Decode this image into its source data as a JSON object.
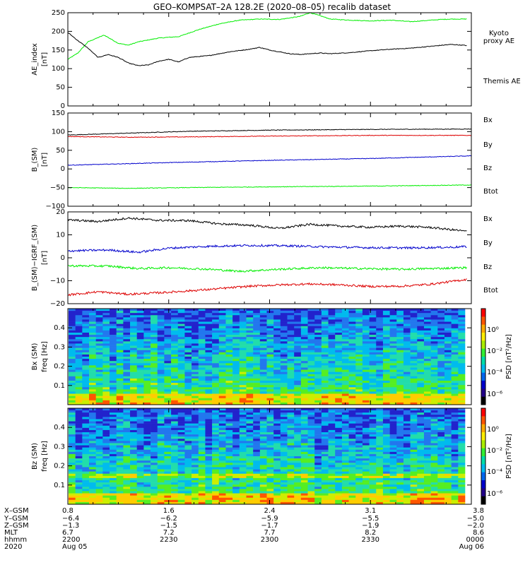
{
  "title": "GEO–KOMPSAT–2A 128.2E (2020–08–05) recalib dataset",
  "colors": {
    "black": "#000000",
    "green": "#00ee00",
    "red": "#dd0000",
    "blue": "#0000cc"
  },
  "chart_data": [
    {
      "id": "ae",
      "type": "line",
      "ylabel": "AE_index",
      "yunit": "[nT]",
      "ylim": [
        0,
        250
      ],
      "yticks": [
        "0",
        "50",
        "100",
        "150",
        "200",
        "250"
      ],
      "xlim": [
        22.0,
        24.0
      ],
      "legend": [
        {
          "text": "Kyoto",
          "color": "#00ee00"
        },
        {
          "text": "proxy AE",
          "color": "#00ee00"
        },
        {
          "text": "Themis AE",
          "color": "#000000"
        }
      ],
      "series": [
        {
          "name": "Kyoto proxy AE",
          "color": "#00ee00",
          "x": [
            22.0,
            22.05,
            22.1,
            22.18,
            22.25,
            22.3,
            22.35,
            22.45,
            22.55,
            22.65,
            22.75,
            22.85,
            22.95,
            23.05,
            23.15,
            23.2,
            23.25,
            23.3,
            23.4,
            23.5,
            23.6,
            23.7,
            23.8,
            23.85,
            23.9,
            23.98
          ],
          "y": [
            125,
            142,
            172,
            190,
            168,
            163,
            172,
            182,
            186,
            205,
            220,
            230,
            233,
            232,
            240,
            250,
            242,
            233,
            230,
            228,
            230,
            226,
            230,
            232,
            233,
            233
          ]
        },
        {
          "name": "Themis AE",
          "color": "#000000",
          "x": [
            22.0,
            22.05,
            22.1,
            22.15,
            22.2,
            22.25,
            22.3,
            22.35,
            22.4,
            22.45,
            22.5,
            22.55,
            22.6,
            22.7,
            22.8,
            22.9,
            22.95,
            23.0,
            23.05,
            23.1,
            23.15,
            23.2,
            23.25,
            23.3,
            23.4,
            23.5,
            23.6,
            23.7,
            23.8,
            23.9,
            23.98
          ],
          "y": [
            197,
            175,
            155,
            130,
            138,
            130,
            115,
            108,
            110,
            120,
            125,
            118,
            130,
            135,
            145,
            152,
            157,
            150,
            145,
            140,
            138,
            140,
            142,
            140,
            143,
            148,
            152,
            155,
            160,
            165,
            162
          ]
        }
      ]
    },
    {
      "id": "bsm",
      "type": "line",
      "ylabel": "B_(SM)",
      "yunit": "[nT]",
      "ylim": [
        -100,
        150
      ],
      "yticks": [
        "−100",
        "−50",
        "0",
        "50",
        "100",
        "150"
      ],
      "xlim": [
        22.0,
        24.0
      ],
      "legend": [
        {
          "text": "Bx",
          "color": "#0000cc"
        },
        {
          "text": "By",
          "color": "#00ee00"
        },
        {
          "text": "Bz",
          "color": "#dd0000"
        },
        {
          "text": "Btot",
          "color": "#000000"
        }
      ],
      "series": [
        {
          "name": "Btot",
          "color": "#000000",
          "x": [
            22.0,
            22.3,
            22.6,
            23.0,
            23.5,
            24.0
          ],
          "y": [
            91,
            96,
            101,
            104,
            106,
            107
          ]
        },
        {
          "name": "Bz",
          "color": "#dd0000",
          "x": [
            22.0,
            22.3,
            22.6,
            23.0,
            23.5,
            24.0
          ],
          "y": [
            87,
            85,
            86,
            88,
            90,
            90
          ]
        },
        {
          "name": "Bx",
          "color": "#0000cc",
          "x": [
            22.0,
            22.5,
            23.0,
            23.5,
            24.0
          ],
          "y": [
            10,
            17,
            23,
            28,
            35
          ]
        },
        {
          "name": "By",
          "color": "#00ee00",
          "x": [
            22.0,
            22.3,
            22.6,
            23.0,
            23.5,
            24.0
          ],
          "y": [
            -50,
            -52,
            -50,
            -48,
            -46,
            -43
          ]
        }
      ]
    },
    {
      "id": "bmi",
      "type": "line",
      "ylabel": "B_(SM)−IGRF_(SM)",
      "yunit": "[nT]",
      "ylim": [
        -20,
        20
      ],
      "yticks": [
        "−20",
        "−10",
        "0",
        "10",
        "20"
      ],
      "xlim": [
        22.0,
        24.0
      ],
      "legend": [
        {
          "text": "Bx",
          "color": "#0000cc"
        },
        {
          "text": "By",
          "color": "#00ee00"
        },
        {
          "text": "Bz",
          "color": "#dd0000"
        },
        {
          "text": "Btot",
          "color": "#000000"
        }
      ],
      "series": [
        {
          "name": "Btot",
          "color": "#000000",
          "x": [
            22.0,
            22.15,
            22.3,
            22.45,
            22.6,
            22.75,
            22.9,
            23.05,
            23.2,
            23.35,
            23.5,
            23.65,
            23.8,
            23.98
          ],
          "y": [
            16.5,
            15.8,
            17.3,
            16.3,
            16.2,
            14.8,
            14.2,
            12.8,
            14.6,
            13.8,
            13.3,
            13.8,
            13.2,
            11.5
          ]
        },
        {
          "name": "Bx",
          "color": "#0000cc",
          "x": [
            22.0,
            22.2,
            22.35,
            22.5,
            22.7,
            22.9,
            23.1,
            23.3,
            23.5,
            23.7,
            23.9,
            23.98
          ],
          "y": [
            3.0,
            3.4,
            2.4,
            4.2,
            5.0,
            5.4,
            5.2,
            4.7,
            4.4,
            4.3,
            4.6,
            4.9
          ]
        },
        {
          "name": "By",
          "color": "#00ee00",
          "x": [
            22.0,
            22.2,
            22.35,
            22.5,
            22.7,
            22.85,
            23.05,
            23.25,
            23.45,
            23.65,
            23.85,
            23.98
          ],
          "y": [
            -3.5,
            -3.6,
            -4.7,
            -4.3,
            -5.0,
            -5.9,
            -5.0,
            -4.3,
            -4.7,
            -5.0,
            -4.6,
            -4.3
          ]
        },
        {
          "name": "Bz",
          "color": "#dd0000",
          "x": [
            22.0,
            22.15,
            22.3,
            22.5,
            22.7,
            22.9,
            23.05,
            23.2,
            23.35,
            23.5,
            23.65,
            23.8,
            23.98
          ],
          "y": [
            -16.2,
            -14.8,
            -15.9,
            -15.0,
            -13.8,
            -12.4,
            -11.8,
            -11.4,
            -11.8,
            -12.5,
            -12.4,
            -11.5,
            -9.4
          ]
        }
      ]
    },
    {
      "id": "bx_spec",
      "type": "heatmap",
      "ylabel": "Bx (SM)",
      "yunit": "freq [Hz]",
      "ylim": [
        0,
        0.5
      ],
      "yticks": [
        "0.1",
        "0.2",
        "0.3",
        "0.4"
      ],
      "colorbar_label": "PSD [nT²/Hz]",
      "colorbar_ticks": [
        "10⁰",
        "10⁻²",
        "10⁻⁴",
        "10⁻⁶"
      ]
    },
    {
      "id": "bz_spec",
      "type": "heatmap",
      "ylabel": "Bz (SM)",
      "yunit": "freq [Hz]",
      "ylim": [
        0,
        0.5
      ],
      "yticks": [
        "0.1",
        "0.2",
        "0.3",
        "0.4"
      ],
      "colorbar_label": "PSD [nT²/Hz]",
      "colorbar_ticks": [
        "10⁰",
        "10⁻²",
        "10⁻⁴",
        "10⁻⁶"
      ]
    }
  ],
  "ephemeris": {
    "labels": [
      "X–GSM",
      "Y–GSM",
      "Z–GSM",
      "MLT",
      "hhmm",
      "2020"
    ],
    "columns": [
      {
        "x": 22.0,
        "values": [
          "0.8",
          "−6.4",
          "−1.3",
          "6.7",
          "2200",
          "Aug 05"
        ]
      },
      {
        "x": 22.5,
        "values": [
          "1.6",
          "−6.2",
          "−1.5",
          "7.2",
          "2230",
          ""
        ]
      },
      {
        "x": 23.0,
        "values": [
          "2.4",
          "−5.9",
          "−1.7",
          "7.7",
          "2300",
          ""
        ]
      },
      {
        "x": 23.5,
        "values": [
          "3.1",
          "−5.5",
          "−1.9",
          "8.2",
          "2330",
          ""
        ]
      },
      {
        "x": 24.0,
        "values": [
          "3.8",
          "−5.0",
          "−2.0",
          "8.6",
          "0000",
          "Aug 06"
        ]
      }
    ]
  }
}
